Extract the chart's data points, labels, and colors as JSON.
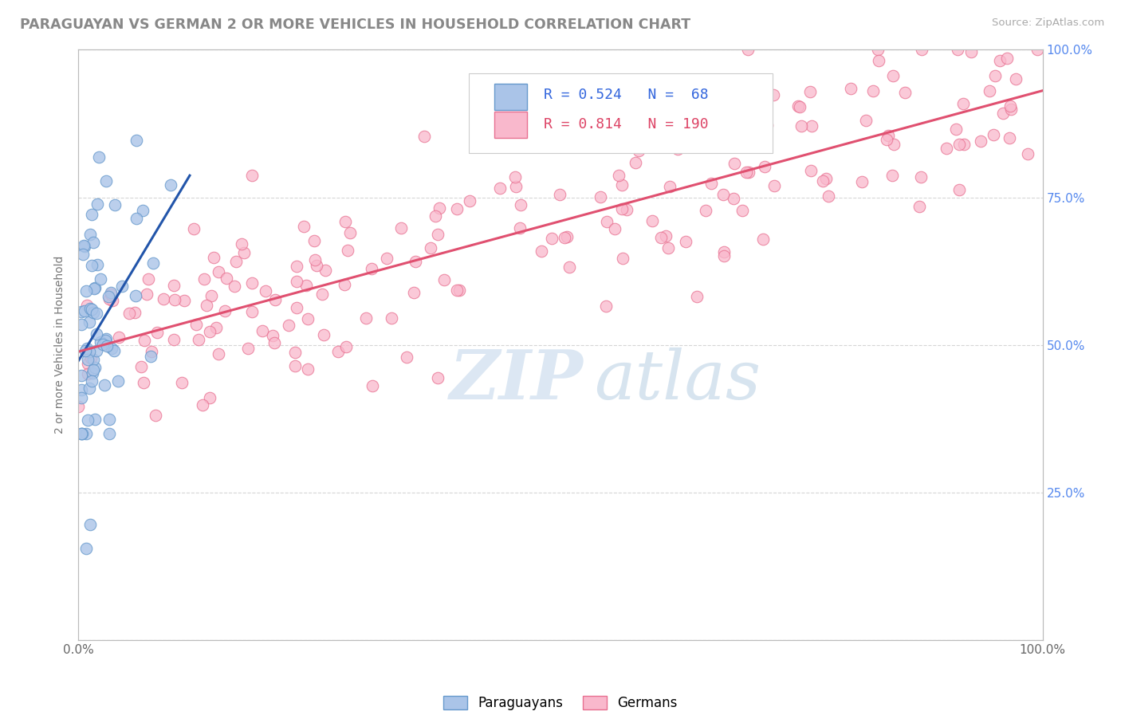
{
  "title": "PARAGUAYAN VS GERMAN 2 OR MORE VEHICLES IN HOUSEHOLD CORRELATION CHART",
  "source": "Source: ZipAtlas.com",
  "ylabel": "2 or more Vehicles in Household",
  "legend1_label": "Paraguayans",
  "legend2_label": "Germans",
  "r1": 0.524,
  "n1": 68,
  "r2": 0.814,
  "n2": 190,
  "blue_fill": "#aac4e8",
  "blue_edge": "#6699cc",
  "blue_line": "#2255aa",
  "pink_fill": "#f9b8cc",
  "pink_edge": "#e87090",
  "pink_line": "#e05070",
  "background_color": "#ffffff",
  "grid_color": "#cccccc",
  "title_color": "#888888",
  "watermark_zip_color": "#c5d8ee",
  "watermark_atlas_color": "#aac8e0",
  "right_tick_color": "#5588ee",
  "figsize": [
    14.06,
    8.92
  ],
  "dpi": 100
}
